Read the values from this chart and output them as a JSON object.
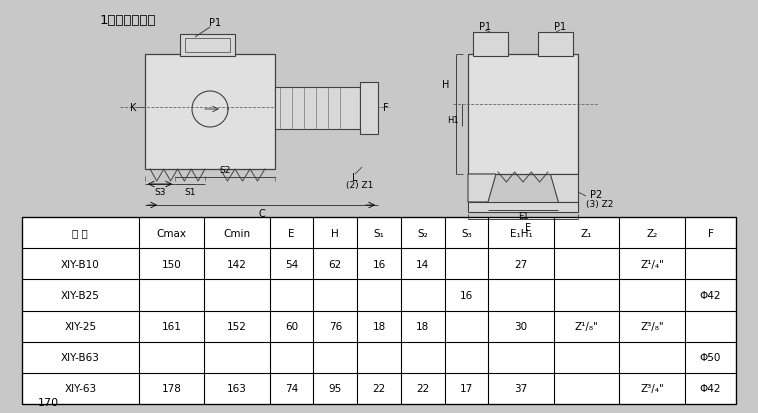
{
  "title": "1、螺纹连接：",
  "page_num": "170",
  "bg_color": "#c8c8c8",
  "draw_color": "#404040",
  "table_rows": [
    [
      "XIY-B10",
      "150",
      "142",
      "54",
      "62",
      "16",
      "14",
      "",
      "27",
      "",
      "Z¹/₄\"",
      ""
    ],
    [
      "XIY-B25",
      "",
      "",
      "",
      "",
      "",
      "",
      "16",
      "",
      "",
      "",
      "Φ42"
    ],
    [
      "XIY-25",
      "161",
      "152",
      "60",
      "76",
      "18",
      "18",
      "",
      "30",
      "Z¹/₈\"",
      "Z³/₈\"",
      ""
    ],
    [
      "XIY-B63",
      "",
      "",
      "",
      "",
      "",
      "",
      "",
      "",
      "",
      "",
      "Φ50"
    ],
    [
      "XIY-63",
      "178",
      "163",
      "74",
      "95",
      "22",
      "22",
      "17",
      "37",
      "",
      "Z³/₄\"",
      "Φ42"
    ]
  ],
  "col_labels": [
    "型 号",
    "Cmax",
    "Cmin",
    "E",
    "H",
    "S₁",
    "S₂",
    "S₃",
    "E₁H₁",
    "Z₁",
    "Z₂",
    "F"
  ],
  "col_widths_rel": [
    1.6,
    0.9,
    0.9,
    0.6,
    0.6,
    0.6,
    0.6,
    0.6,
    0.9,
    0.9,
    0.9,
    0.7
  ]
}
